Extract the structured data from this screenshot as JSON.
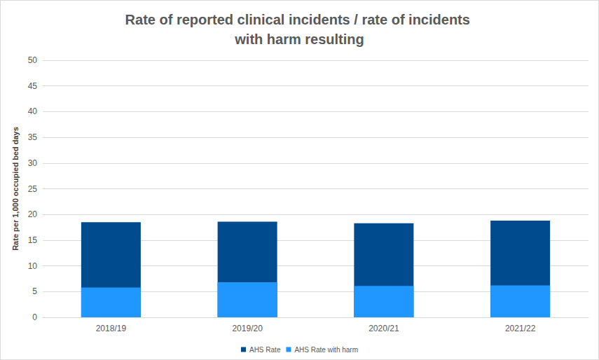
{
  "chart_data": {
    "type": "bar",
    "title": "Rate of reported clinical incidents / rate of incidents with harm resulting",
    "y_label": "Rate per 1,000 occupied bed days",
    "categories": [
      "2018/19",
      "2019/20",
      "2020/21",
      "2021/22"
    ],
    "series": [
      {
        "name": "AHS Rate",
        "color": "#004b8d",
        "values": [
          18.5,
          18.6,
          18.3,
          18.8
        ]
      },
      {
        "name": "AHS Rate with harm",
        "color": "#1f97ff",
        "values": [
          5.8,
          6.8,
          6.1,
          6.2
        ]
      }
    ],
    "ylim": [
      0,
      50
    ],
    "yticks": [
      0,
      5,
      10,
      15,
      20,
      25,
      30,
      35,
      40,
      45,
      50
    ],
    "grid": true,
    "legend": "bottom"
  }
}
